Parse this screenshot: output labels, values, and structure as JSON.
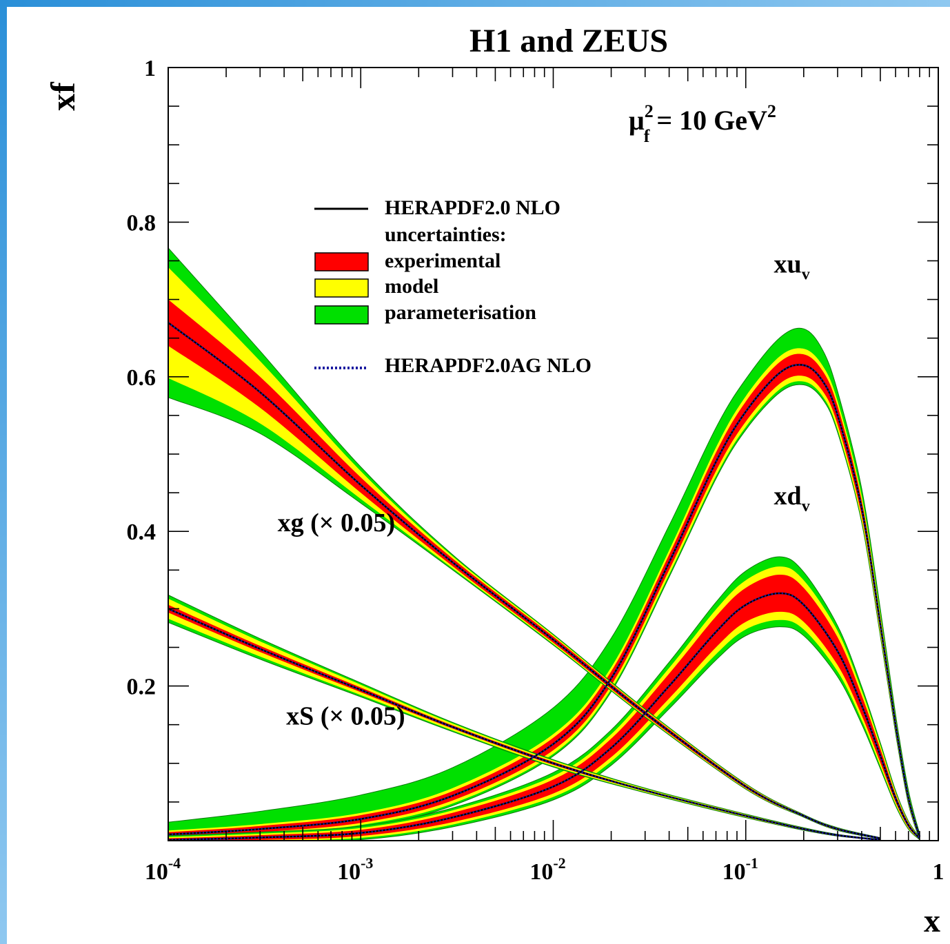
{
  "chart_data": {
    "type": "line",
    "title": "H1 and ZEUS",
    "xlabel": "x",
    "ylabel": "xf",
    "xscale": "log",
    "xlim": [
      0.0001,
      1
    ],
    "ylim": [
      0,
      1
    ],
    "grid": false,
    "scale_annotation": {
      "base": "μ",
      "sup": "2",
      "sub": "f",
      "rest": " = 10 GeV",
      "unit_sup": "2"
    },
    "x_ticks": [
      {
        "value": 0.0001,
        "base": "10",
        "exp": "-4"
      },
      {
        "value": 0.001,
        "base": "10",
        "exp": "-3"
      },
      {
        "value": 0.01,
        "base": "10",
        "exp": "-2"
      },
      {
        "value": 0.1,
        "base": "10",
        "exp": "-1"
      },
      {
        "value": 1,
        "base": "1",
        "exp": ""
      }
    ],
    "y_ticks": [
      {
        "value": 0.2,
        "label": "0.2"
      },
      {
        "value": 0.4,
        "label": "0.4"
      },
      {
        "value": 0.6,
        "label": "0.6"
      },
      {
        "value": 0.8,
        "label": "0.8"
      },
      {
        "value": 1,
        "label": "1"
      }
    ],
    "colors": {
      "experimental": "#ff0000",
      "model": "#ffff00",
      "parameterisation": "#00e000",
      "central": "#000000",
      "alt": "#1a1aa0"
    },
    "legend": {
      "placement": "upper-left",
      "central": "HERAPDF2.0 NLO",
      "header": "uncertainties:",
      "bands": [
        {
          "key": "experimental",
          "label": "experimental"
        },
        {
          "key": "model",
          "label": "model"
        },
        {
          "key": "parameterisation",
          "label": "parameterisation"
        }
      ],
      "alt": "HERAPDF2.0AG NLO"
    },
    "series": [
      {
        "label": {
          "main": "xu",
          "sub": "v",
          "suffix": ""
        },
        "label_at": [
          0.14,
          0.735
        ],
        "x": [
          0.0001,
          0.0003,
          0.001,
          0.003,
          0.01,
          0.02,
          0.04,
          0.07,
          0.1,
          0.15,
          0.2,
          0.25,
          0.3,
          0.4,
          0.5,
          0.6,
          0.7,
          0.8
        ],
        "y": [
          0.008,
          0.015,
          0.028,
          0.058,
          0.125,
          0.21,
          0.36,
          0.49,
          0.555,
          0.605,
          0.615,
          0.595,
          0.55,
          0.43,
          0.28,
          0.15,
          0.055,
          0.005
        ],
        "exp": [
          0.003,
          0.004,
          0.005,
          0.006,
          0.008,
          0.009,
          0.01,
          0.012,
          0.013,
          0.014,
          0.014,
          0.013,
          0.012,
          0.01,
          0.008,
          0.006,
          0.004,
          0.002
        ],
        "model": [
          0.004,
          0.005,
          0.006,
          0.008,
          0.01,
          0.011,
          0.012,
          0.014,
          0.015,
          0.016,
          0.016,
          0.015,
          0.014,
          0.012,
          0.01,
          0.007,
          0.005,
          0.002
        ],
        "param_up": [
          0.015,
          0.022,
          0.03,
          0.035,
          0.045,
          0.05,
          0.045,
          0.04,
          0.037,
          0.04,
          0.042,
          0.035,
          0.025,
          0.02,
          0.015,
          0.01,
          0.008,
          0.003
        ],
        "param_dn": [
          0.005,
          0.006,
          0.007,
          0.008,
          0.009,
          0.01,
          0.011,
          0.012,
          0.013,
          0.014,
          0.014,
          0.013,
          0.012,
          0.01,
          0.008,
          0.006,
          0.004,
          0.002
        ]
      },
      {
        "label": {
          "main": "xd",
          "sub": "v",
          "suffix": ""
        },
        "label_at": [
          0.14,
          0.435
        ],
        "x": [
          0.0001,
          0.0003,
          0.001,
          0.003,
          0.01,
          0.02,
          0.04,
          0.07,
          0.1,
          0.15,
          0.2,
          0.3,
          0.4,
          0.5,
          0.6,
          0.7,
          0.8
        ],
        "y": [
          0.001,
          0.004,
          0.01,
          0.03,
          0.07,
          0.12,
          0.2,
          0.27,
          0.305,
          0.32,
          0.305,
          0.245,
          0.175,
          0.11,
          0.055,
          0.02,
          0.003
        ],
        "exp": [
          0.002,
          0.003,
          0.004,
          0.006,
          0.009,
          0.012,
          0.016,
          0.02,
          0.022,
          0.024,
          0.022,
          0.018,
          0.013,
          0.009,
          0.005,
          0.003,
          0.001
        ],
        "model": [
          0.003,
          0.004,
          0.005,
          0.007,
          0.01,
          0.013,
          0.017,
          0.021,
          0.023,
          0.025,
          0.023,
          0.019,
          0.014,
          0.01,
          0.006,
          0.003,
          0.001
        ],
        "param_up": [
          0.004,
          0.005,
          0.006,
          0.008,
          0.012,
          0.015,
          0.02,
          0.025,
          0.03,
          0.032,
          0.028,
          0.02,
          0.015,
          0.01,
          0.006,
          0.003,
          0.001
        ],
        "param_dn": [
          0.004,
          0.005,
          0.006,
          0.008,
          0.011,
          0.014,
          0.018,
          0.022,
          0.024,
          0.026,
          0.024,
          0.02,
          0.015,
          0.01,
          0.006,
          0.003,
          0.001
        ]
      },
      {
        "label": {
          "main": "xg (× 0.05)",
          "sub": "",
          "suffix": ""
        },
        "label_at": [
          0.00037,
          0.4
        ],
        "x": [
          0.0001,
          0.0003,
          0.001,
          0.003,
          0.01,
          0.03,
          0.1,
          0.2,
          0.3,
          0.5
        ],
        "y": [
          0.67,
          0.58,
          0.46,
          0.36,
          0.26,
          0.165,
          0.07,
          0.032,
          0.015,
          0.003
        ],
        "exp": [
          0.03,
          0.02,
          0.01,
          0.005,
          0.004,
          0.003,
          0.002,
          0.001,
          0.001,
          0.0005
        ],
        "model": [
          0.065,
          0.035,
          0.015,
          0.006,
          0.004,
          0.003,
          0.002,
          0.001,
          0.001,
          0.0005
        ],
        "param_up": [
          0.065,
          0.035,
          0.015,
          0.006,
          0.004,
          0.003,
          0.002,
          0.001,
          0.001,
          0.0005
        ],
        "param_dn": [
          0.065,
          0.035,
          0.015,
          0.006,
          0.004,
          0.003,
          0.002,
          0.001,
          0.001,
          0.0005
        ]
      },
      {
        "label": {
          "main": "xS (× 0.05)",
          "sub": "",
          "suffix": ""
        },
        "label_at": [
          0.00041,
          0.15
        ],
        "x": [
          0.0001,
          0.0003,
          0.001,
          0.003,
          0.01,
          0.03,
          0.1,
          0.2,
          0.3,
          0.5
        ],
        "y": [
          0.3,
          0.248,
          0.195,
          0.147,
          0.1,
          0.065,
          0.032,
          0.015,
          0.007,
          0.001
        ],
        "exp": [
          0.005,
          0.004,
          0.003,
          0.002,
          0.002,
          0.001,
          0.001,
          0.0008,
          0.0005,
          0.0003
        ],
        "model": [
          0.012,
          0.009,
          0.006,
          0.004,
          0.003,
          0.002,
          0.0015,
          0.001,
          0.0007,
          0.0003
        ],
        "param_up": [
          0.012,
          0.009,
          0.006,
          0.004,
          0.003,
          0.002,
          0.0015,
          0.001,
          0.0007,
          0.0003
        ],
        "param_dn": [
          0.012,
          0.009,
          0.006,
          0.004,
          0.003,
          0.002,
          0.0015,
          0.001,
          0.0007,
          0.0003
        ]
      }
    ]
  }
}
